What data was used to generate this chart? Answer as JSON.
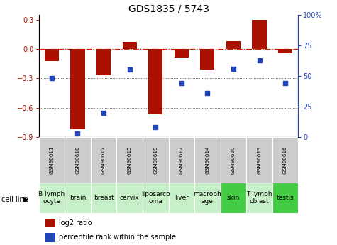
{
  "title": "GDS1835 / 5743",
  "samples": [
    "GSM90611",
    "GSM90618",
    "GSM90617",
    "GSM90615",
    "GSM90619",
    "GSM90612",
    "GSM90614",
    "GSM90620",
    "GSM90613",
    "GSM90616"
  ],
  "cell_lines": [
    "B lymph\nocyte",
    "brain",
    "breast",
    "cervix",
    "liposarco\noma",
    "liver",
    "macroph\nage",
    "skin",
    "T lymph\noblast",
    "testis"
  ],
  "cell_line_colors": [
    "#c8f0c8",
    "#c8f0c8",
    "#c8f0c8",
    "#c8f0c8",
    "#c8f0c8",
    "#c8f0c8",
    "#c8f0c8",
    "#44cc44",
    "#c8f0c8",
    "#44cc44"
  ],
  "log2_ratio": [
    -0.12,
    -0.82,
    -0.27,
    0.07,
    -0.67,
    -0.09,
    -0.21,
    0.08,
    0.3,
    -0.04
  ],
  "percentile_rank": [
    48,
    3,
    20,
    55,
    8,
    44,
    36,
    56,
    63,
    44
  ],
  "ylim_left": [
    -0.9,
    0.35
  ],
  "ylim_right": [
    0,
    100
  ],
  "yticks_left": [
    -0.9,
    -0.6,
    -0.3,
    0.0,
    0.3
  ],
  "yticks_right": [
    0,
    25,
    50,
    75,
    100
  ],
  "bar_color": "#aa1100",
  "scatter_color": "#2244bb",
  "dashed_line_color": "#cc2200",
  "dot_line_color": "#333333",
  "bar_width": 0.55,
  "gsm_box_color": "#cccccc",
  "title_fontsize": 10,
  "axis_fontsize": 7,
  "label_fontsize": 6,
  "cell_line_fontsize": 6.5
}
